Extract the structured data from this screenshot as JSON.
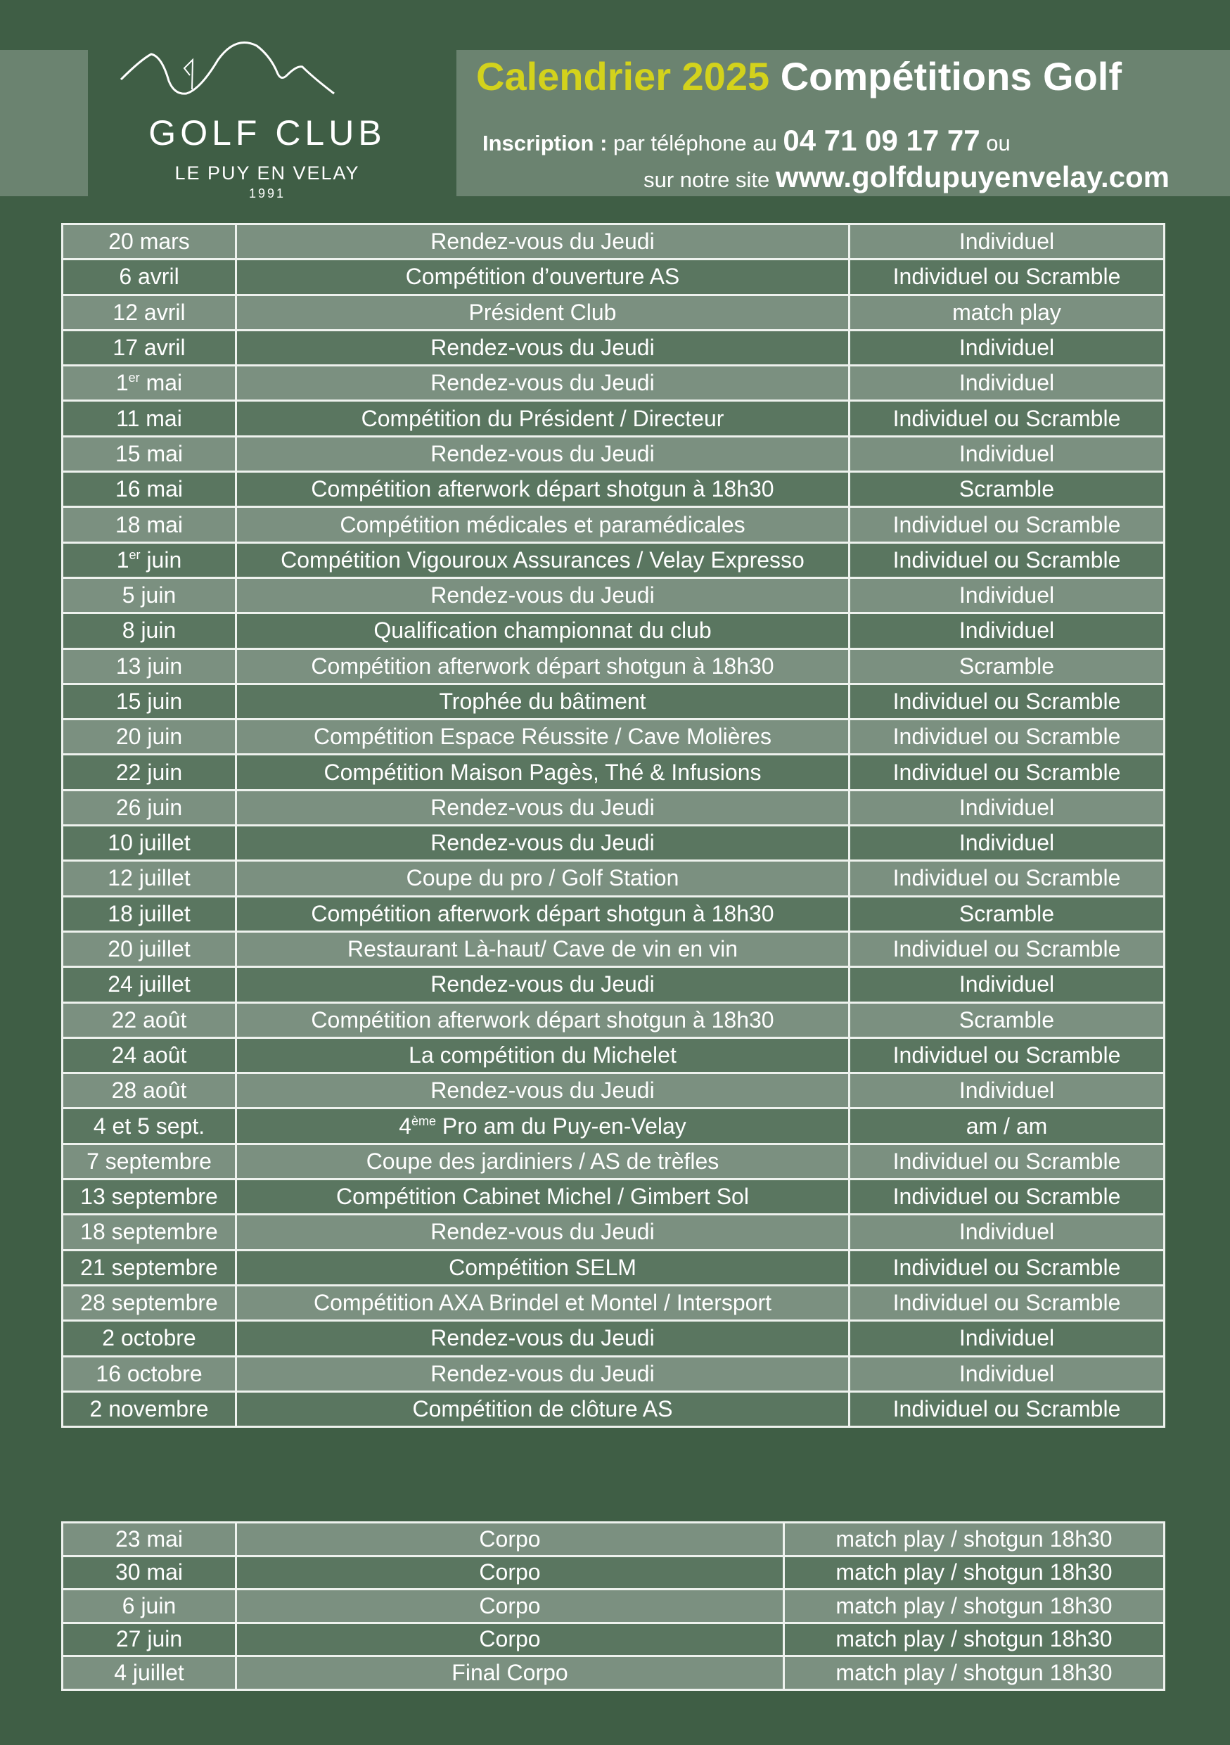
{
  "logo": {
    "name": "GOLF CLUB",
    "city": "LE PUY EN VELAY",
    "year": "1991"
  },
  "header": {
    "title_highlight": "Calendrier 2025",
    "title_rest": "Compétitions Golf",
    "inscription_label": "Inscription :",
    "phone_prefix": "par téléphone  au",
    "phone": "04 71 09 17 77",
    "phone_suffix": "ou",
    "site_prefix": "sur notre site",
    "site": "www.golfdupuyenvelay.com"
  },
  "colors": {
    "background": "#3f5e45",
    "row_light": "#7b9080",
    "row_dark": "#5a7660",
    "title_accent": "#d3d21c"
  },
  "competitions": [
    {
      "date": "20 mars",
      "event": "Rendez-vous du Jeudi",
      "format": "Individuel"
    },
    {
      "date": "6 avril",
      "event": "Compétition d’ouverture AS",
      "format": "Individuel ou Scramble"
    },
    {
      "date": "12 avril",
      "event": "Président Club",
      "format": "match play"
    },
    {
      "date": "17 avril",
      "event": "Rendez-vous du Jeudi",
      "format": "Individuel"
    },
    {
      "date_num": "1",
      "date_sup": "er",
      "date": " mai",
      "event": "Rendez-vous du Jeudi",
      "format": "Individuel"
    },
    {
      "date": "11 mai",
      "event": "Compétition du Président / Directeur",
      "format": "Individuel ou Scramble"
    },
    {
      "date": "15 mai",
      "event": "Rendez-vous du Jeudi",
      "format": "Individuel"
    },
    {
      "date": "16 mai",
      "event": "Compétition afterwork départ shotgun à 18h30",
      "format": "Scramble"
    },
    {
      "date": "18 mai",
      "event": "Compétition médicales et paramédicales",
      "format": "Individuel ou Scramble"
    },
    {
      "date_num": "1",
      "date_sup": "er",
      "date": " juin",
      "event": "Compétition Vigouroux Assurances / Velay Expresso",
      "format": "Individuel ou Scramble"
    },
    {
      "date": "5 juin",
      "event": "Rendez-vous du Jeudi",
      "format": "Individuel"
    },
    {
      "date": "8 juin",
      "event": "Qualification championnat du club",
      "format": "Individuel"
    },
    {
      "date": "13 juin",
      "event": "Compétition afterwork départ shotgun à 18h30",
      "format": "Scramble"
    },
    {
      "date": "15 juin",
      "event": "Trophée du bâtiment",
      "format": "Individuel ou Scramble"
    },
    {
      "date": "20 juin",
      "event": "Compétition Espace Réussite / Cave Molières",
      "format": "Individuel ou Scramble"
    },
    {
      "date": "22 juin",
      "event": "Compétition Maison Pagès, Thé & Infusions",
      "format": "Individuel ou Scramble"
    },
    {
      "date": "26 juin",
      "event": "Rendez-vous du Jeudi",
      "format": "Individuel"
    },
    {
      "date": "10 juillet",
      "event": "Rendez-vous du Jeudi",
      "format": "Individuel"
    },
    {
      "date": "12 juillet",
      "event": "Coupe du pro / Golf Station",
      "format": "Individuel ou Scramble"
    },
    {
      "date": "18 juillet",
      "event": "Compétition afterwork départ shotgun à 18h30",
      "format": "Scramble"
    },
    {
      "date": "20 juillet",
      "event": "Restaurant Là-haut/ Cave de vin en vin",
      "format": "Individuel ou Scramble"
    },
    {
      "date": "24 juillet",
      "event": "Rendez-vous du Jeudi",
      "format": "Individuel"
    },
    {
      "date": "22 août",
      "event": "Compétition afterwork départ shotgun à 18h30",
      "format": "Scramble"
    },
    {
      "date": "24 août",
      "event": "La compétition du Michelet",
      "format": "Individuel ou Scramble"
    },
    {
      "date": "28 août",
      "event": "Rendez-vous du Jeudi",
      "format": "Individuel"
    },
    {
      "date": "4 et 5 sept.",
      "event_num": "4",
      "event_sup": "ème",
      "event": " Pro am du Puy-en-Velay",
      "format": "am / am"
    },
    {
      "date": "7 septembre",
      "event": "Coupe des jardiniers / AS de trèfles",
      "format": "Individuel ou Scramble"
    },
    {
      "date": "13 septembre",
      "event": "Compétition Cabinet Michel / Gimbert Sol",
      "format": "Individuel ou Scramble"
    },
    {
      "date": "18 septembre",
      "event": "Rendez-vous du Jeudi",
      "format": "Individuel"
    },
    {
      "date": "21 septembre",
      "event": "Compétition SELM",
      "format": "Individuel ou Scramble"
    },
    {
      "date": "28 septembre",
      "event": "Compétition AXA Brindel et Montel / Intersport",
      "format": "Individuel ou Scramble"
    },
    {
      "date": "2 octobre",
      "event": "Rendez-vous du Jeudi",
      "format": "Individuel"
    },
    {
      "date": "16 octobre",
      "event": "Rendez-vous du Jeudi",
      "format": "Individuel"
    },
    {
      "date": "2 novembre",
      "event": "Compétition de clôture AS",
      "format": "Individuel ou Scramble"
    }
  ],
  "corpo": [
    {
      "date": "23 mai",
      "event": "Corpo",
      "format": "match play / shotgun 18h30"
    },
    {
      "date": "30 mai",
      "event": "Corpo",
      "format": "match play / shotgun 18h30"
    },
    {
      "date": "6 juin",
      "event": "Corpo",
      "format": "match play / shotgun 18h30"
    },
    {
      "date": "27 juin",
      "event": "Corpo",
      "format": "match play / shotgun 18h30"
    },
    {
      "date": "4 juillet",
      "event": "Final Corpo",
      "format": "match play / shotgun 18h30"
    }
  ]
}
